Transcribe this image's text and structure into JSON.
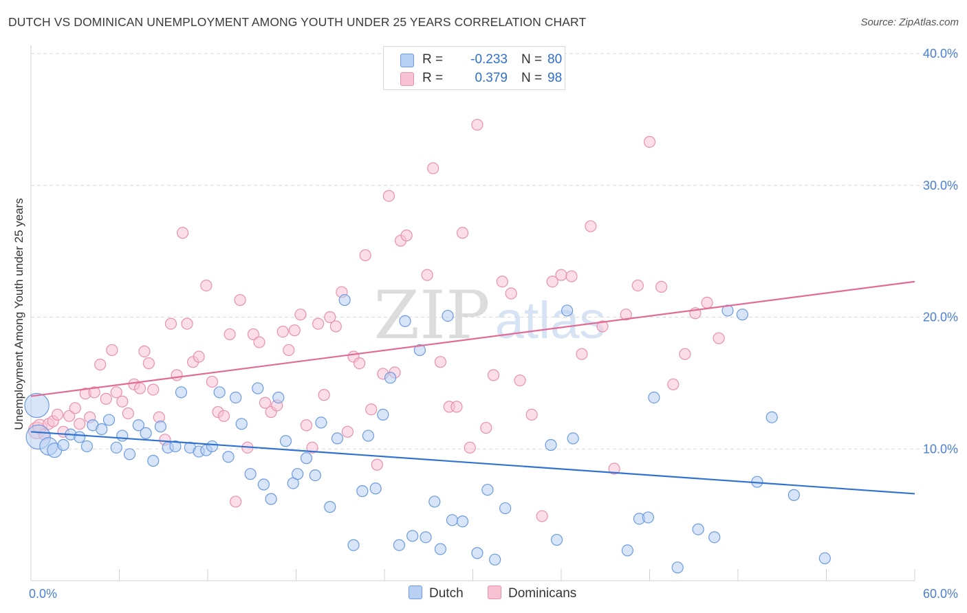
{
  "title": "DUTCH VS DOMINICAN UNEMPLOYMENT AMONG YOUTH UNDER 25 YEARS CORRELATION CHART",
  "source": "Source: ZipAtlas.com",
  "watermark": {
    "zip": "ZIP",
    "atlas": "atlas"
  },
  "colors": {
    "dutch_fill": "#b8d0f2",
    "dutch_stroke": "#6b9ae0",
    "dutch_line": "#2f72d0",
    "dom_fill": "#f7c3d3",
    "dom_stroke": "#e890ad",
    "dom_line": "#e06b94",
    "grid": "#d9d9d9",
    "tick_label": "#4a7fd4"
  },
  "legend": {
    "dutch": {
      "r_label": "R =",
      "r_value": "-0.233",
      "n_label": "N =",
      "n_value": "80"
    },
    "dominicans": {
      "r_label": "R =",
      "r_value": "0.379",
      "n_label": "N =",
      "n_value": "98"
    }
  },
  "bottom_legend": {
    "dutch": "Dutch",
    "dominicans": "Dominicans"
  },
  "chart_data": {
    "type": "scatter",
    "title": "DUTCH VS DOMINICAN UNEMPLOYMENT AMONG YOUTH UNDER 25 YEARS CORRELATION CHART",
    "xlabel": "",
    "ylabel": "Unemployment Among Youth under 25 years",
    "xlim": [
      0,
      60
    ],
    "ylim": [
      0,
      40
    ],
    "x_tick_labels": [
      "0.0%",
      "60.0%"
    ],
    "y_ticks": [
      10,
      20,
      30,
      40
    ],
    "y_tick_labels": [
      "10.0%",
      "20.0%",
      "30.0%",
      "40.0%"
    ],
    "grid": true,
    "legend_position": "top-center",
    "series": [
      {
        "name": "Dutch",
        "trend": {
          "x": [
            0,
            60
          ],
          "y": [
            11.3,
            6.6
          ]
        },
        "points": [
          [
            0.4,
            13.3,
            2.2
          ],
          [
            0.5,
            10.9,
            2.2
          ],
          [
            1.2,
            10.2,
            1.6
          ],
          [
            1.6,
            9.9,
            1.3
          ],
          [
            2.2,
            10.3,
            1
          ],
          [
            2.7,
            11.1,
            1
          ],
          [
            3.3,
            10.9,
            1
          ],
          [
            3.8,
            10.2,
            1
          ],
          [
            4.2,
            11.8,
            1
          ],
          [
            4.8,
            11.5,
            1
          ],
          [
            5.3,
            12.2,
            1
          ],
          [
            5.8,
            10.1,
            1
          ],
          [
            6.2,
            11.0,
            1
          ],
          [
            6.7,
            9.6,
            1
          ],
          [
            7.3,
            11.8,
            1
          ],
          [
            7.8,
            11.2,
            1
          ],
          [
            8.3,
            9.1,
            1
          ],
          [
            8.8,
            11.7,
            1
          ],
          [
            9.3,
            10.1,
            1
          ],
          [
            9.8,
            10.2,
            1
          ],
          [
            10.2,
            14.3,
            1
          ],
          [
            10.8,
            10.1,
            1
          ],
          [
            11.4,
            9.8,
            1
          ],
          [
            11.9,
            9.9,
            1
          ],
          [
            12.3,
            10.2,
            1
          ],
          [
            12.8,
            14.3,
            1
          ],
          [
            13.4,
            9.4,
            1
          ],
          [
            13.9,
            13.9,
            1
          ],
          [
            14.3,
            11.9,
            1
          ],
          [
            14.9,
            8.1,
            1
          ],
          [
            15.4,
            14.6,
            1
          ],
          [
            15.8,
            7.3,
            1
          ],
          [
            16.3,
            6.2,
            1
          ],
          [
            16.8,
            13.9,
            1
          ],
          [
            17.3,
            10.6,
            1
          ],
          [
            17.8,
            7.4,
            1
          ],
          [
            18.1,
            8.1,
            1
          ],
          [
            18.7,
            9.3,
            1
          ],
          [
            19.3,
            8.0,
            1
          ],
          [
            19.7,
            12.0,
            1
          ],
          [
            20.3,
            5.6,
            1
          ],
          [
            20.8,
            10.8,
            1
          ],
          [
            21.3,
            21.3,
            1
          ],
          [
            21.9,
            2.7,
            1
          ],
          [
            22.5,
            6.8,
            1
          ],
          [
            22.9,
            11.0,
            1
          ],
          [
            23.4,
            7.0,
            1
          ],
          [
            23.9,
            12.6,
            1
          ],
          [
            24.4,
            15.4,
            1
          ],
          [
            25.0,
            2.7,
            1
          ],
          [
            25.4,
            19.7,
            1
          ],
          [
            25.9,
            3.4,
            1
          ],
          [
            26.4,
            17.5,
            1
          ],
          [
            26.8,
            3.3,
            1
          ],
          [
            27.4,
            6.0,
            1
          ],
          [
            27.8,
            2.4,
            1
          ],
          [
            28.3,
            20.1,
            1
          ],
          [
            28.6,
            4.6,
            1
          ],
          [
            29.3,
            4.5,
            1
          ],
          [
            30.3,
            2.1,
            1
          ],
          [
            31.0,
            6.9,
            1
          ],
          [
            31.5,
            1.6,
            1
          ],
          [
            32.2,
            5.5,
            1
          ],
          [
            35.3,
            10.3,
            1
          ],
          [
            35.7,
            3.1,
            1
          ],
          [
            36.4,
            20.5,
            1
          ],
          [
            36.8,
            10.8,
            1
          ],
          [
            40.5,
            2.3,
            1
          ],
          [
            41.3,
            4.7,
            1
          ],
          [
            41.9,
            4.8,
            1
          ],
          [
            42.3,
            13.9,
            1
          ],
          [
            43.9,
            1.0,
            1
          ],
          [
            45.3,
            3.9,
            1
          ],
          [
            46.4,
            3.3,
            1
          ],
          [
            47.3,
            20.5,
            1
          ],
          [
            48.3,
            20.2,
            1
          ],
          [
            49.3,
            7.5,
            1
          ],
          [
            50.3,
            12.4,
            1
          ],
          [
            51.8,
            6.5,
            1
          ],
          [
            53.9,
            1.7,
            1
          ]
        ]
      },
      {
        "name": "Dominicans",
        "trend": {
          "x": [
            0,
            60
          ],
          "y": [
            14.0,
            22.7
          ]
        },
        "points": [
          [
            0.4,
            11.4,
            1.5
          ],
          [
            0.6,
            11.7,
            1.3
          ],
          [
            0.9,
            11.1,
            1
          ],
          [
            1.2,
            11.9,
            1
          ],
          [
            1.5,
            12.1,
            1
          ],
          [
            1.8,
            12.6,
            1
          ],
          [
            2.2,
            11.3,
            1
          ],
          [
            2.6,
            12.5,
            1
          ],
          [
            3.0,
            13.1,
            1
          ],
          [
            3.3,
            11.9,
            1
          ],
          [
            3.7,
            14.2,
            1
          ],
          [
            4.0,
            12.4,
            1
          ],
          [
            4.3,
            14.3,
            1
          ],
          [
            4.7,
            16.4,
            1
          ],
          [
            5.1,
            13.8,
            1
          ],
          [
            5.5,
            17.5,
            1
          ],
          [
            5.8,
            14.3,
            1
          ],
          [
            6.2,
            13.6,
            1
          ],
          [
            6.6,
            12.7,
            1
          ],
          [
            7.0,
            14.9,
            1
          ],
          [
            7.4,
            14.6,
            1
          ],
          [
            7.7,
            17.4,
            1
          ],
          [
            8.0,
            16.5,
            1
          ],
          [
            8.3,
            14.5,
            1
          ],
          [
            8.7,
            12.4,
            1
          ],
          [
            9.1,
            10.7,
            1
          ],
          [
            9.5,
            19.5,
            1
          ],
          [
            9.9,
            15.6,
            1
          ],
          [
            10.3,
            26.4,
            1
          ],
          [
            10.6,
            19.5,
            1
          ],
          [
            11.0,
            16.6,
            1
          ],
          [
            11.4,
            17.0,
            1
          ],
          [
            11.9,
            22.4,
            1
          ],
          [
            12.3,
            15.1,
            1
          ],
          [
            12.7,
            12.8,
            1
          ],
          [
            13.1,
            12.5,
            1
          ],
          [
            13.5,
            18.7,
            1
          ],
          [
            13.9,
            6.0,
            1
          ],
          [
            14.2,
            21.3,
            1
          ],
          [
            14.7,
            10.1,
            1
          ],
          [
            15.1,
            18.7,
            1
          ],
          [
            15.5,
            18.1,
            1
          ],
          [
            15.9,
            13.5,
            1
          ],
          [
            16.3,
            12.8,
            1
          ],
          [
            16.7,
            13.3,
            1
          ],
          [
            17.1,
            18.9,
            1
          ],
          [
            17.5,
            17.5,
            1
          ],
          [
            17.9,
            19.0,
            1
          ],
          [
            18.3,
            20.2,
            1
          ],
          [
            18.7,
            11.8,
            1
          ],
          [
            19.1,
            10.1,
            1
          ],
          [
            19.5,
            19.5,
            1
          ],
          [
            19.9,
            14.1,
            1
          ],
          [
            20.3,
            20.0,
            1
          ],
          [
            20.7,
            19.3,
            1
          ],
          [
            21.1,
            21.9,
            1
          ],
          [
            21.5,
            11.3,
            1
          ],
          [
            21.9,
            17.0,
            1
          ],
          [
            22.3,
            16.5,
            1
          ],
          [
            22.7,
            24.7,
            1
          ],
          [
            23.1,
            13.0,
            1
          ],
          [
            23.5,
            8.8,
            1
          ],
          [
            23.9,
            15.7,
            1
          ],
          [
            24.3,
            29.2,
            1
          ],
          [
            24.7,
            15.8,
            1
          ],
          [
            25.1,
            25.8,
            1
          ],
          [
            25.5,
            26.2,
            1
          ],
          [
            26.9,
            23.2,
            1
          ],
          [
            27.3,
            31.3,
            1
          ],
          [
            27.8,
            16.6,
            1
          ],
          [
            28.4,
            13.2,
            1
          ],
          [
            28.9,
            13.2,
            1
          ],
          [
            29.3,
            26.4,
            1
          ],
          [
            29.8,
            10.1,
            1
          ],
          [
            30.3,
            34.6,
            1
          ],
          [
            30.9,
            11.6,
            1
          ],
          [
            31.4,
            15.6,
            1
          ],
          [
            32.0,
            22.7,
            1
          ],
          [
            32.6,
            21.8,
            1
          ],
          [
            33.2,
            15.2,
            1
          ],
          [
            34.0,
            12.6,
            1
          ],
          [
            34.7,
            4.9,
            1
          ],
          [
            35.4,
            22.7,
            1
          ],
          [
            36.0,
            23.2,
            1
          ],
          [
            36.7,
            23.1,
            1
          ],
          [
            37.4,
            17.2,
            1
          ],
          [
            38.0,
            26.9,
            1
          ],
          [
            38.8,
            19.3,
            1
          ],
          [
            39.6,
            8.5,
            1
          ],
          [
            40.4,
            20.2,
            1
          ],
          [
            41.2,
            22.4,
            1
          ],
          [
            42.0,
            33.3,
            1
          ],
          [
            42.8,
            22.3,
            1
          ],
          [
            43.6,
            14.9,
            1
          ],
          [
            44.4,
            17.2,
            1
          ],
          [
            45.1,
            20.3,
            1
          ],
          [
            45.9,
            21.1,
            1
          ],
          [
            46.7,
            18.4,
            1
          ]
        ]
      }
    ]
  }
}
